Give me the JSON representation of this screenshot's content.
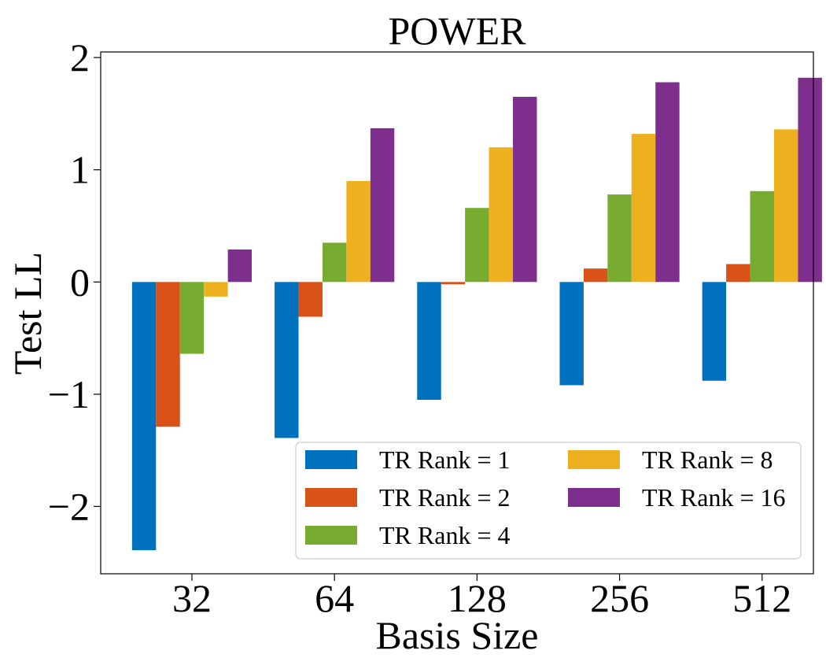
{
  "chart_data": {
    "type": "bar",
    "title": "POWER",
    "xlabel": "Basis Size",
    "ylabel": "Test LL",
    "categories": [
      "32",
      "64",
      "128",
      "256",
      "512"
    ],
    "ylim": [
      -2.6,
      2.05
    ],
    "yticks": [
      2,
      1,
      0,
      -1,
      -2
    ],
    "ytick_labels": [
      "2",
      "1",
      "0",
      "−1",
      "−2"
    ],
    "grid": false,
    "legend_position": "lower-right",
    "legend_columns": 2,
    "series": [
      {
        "name": "TR Rank = 1",
        "color": "#0072bd",
        "values": [
          -2.39,
          -1.39,
          -1.05,
          -0.92,
          -0.88
        ]
      },
      {
        "name": "TR Rank = 2",
        "color": "#d95319",
        "values": [
          -1.29,
          -0.31,
          -0.02,
          0.12,
          0.16
        ]
      },
      {
        "name": "TR Rank = 4",
        "color": "#77ac30",
        "values": [
          -0.64,
          0.35,
          0.66,
          0.78,
          0.81
        ]
      },
      {
        "name": "TR Rank = 8",
        "color": "#edb120",
        "values": [
          -0.13,
          0.9,
          1.2,
          1.32,
          1.36
        ]
      },
      {
        "name": "TR Rank = 16",
        "color": "#7e2f8e",
        "values": [
          0.29,
          1.37,
          1.65,
          1.78,
          1.82
        ]
      }
    ]
  }
}
